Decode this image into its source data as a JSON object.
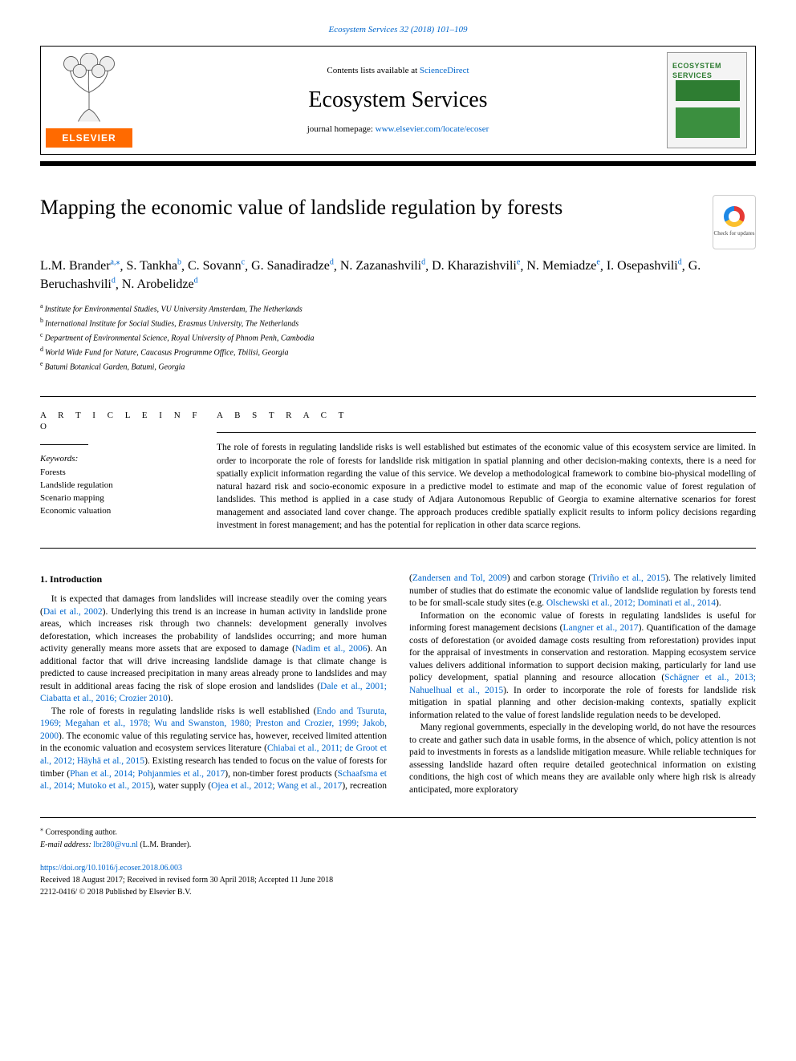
{
  "header": {
    "page_ref": "Ecosystem Services 32 (2018) 101–109",
    "contents_prefix": "Contents lists available at ",
    "contents_link": "ScienceDirect",
    "journal_name": "Ecosystem Services",
    "homepage_prefix": "journal homepage: ",
    "homepage_url": "www.elsevier.com/locate/ecoser",
    "elsevier": "ELSEVIER",
    "cover_ecosystem": "ECOSYSTEM",
    "cover_services": "SERVICES"
  },
  "title": "Mapping the economic value of landslide regulation by forests",
  "check_updates": "Check for updates",
  "authors": [
    {
      "name": "L.M. Brander",
      "sup": "a,",
      "star": "⁎"
    },
    {
      "name": "S. Tankha",
      "sup": "b"
    },
    {
      "name": "C. Sovann",
      "sup": "c"
    },
    {
      "name": "G. Sanadiradze",
      "sup": "d"
    },
    {
      "name": "N. Zazanashvili",
      "sup": "d"
    },
    {
      "name": "D. Kharazishvili",
      "sup": "e"
    },
    {
      "name": "N. Memiadze",
      "sup": "e"
    },
    {
      "name": "I. Osepashvili",
      "sup": "d"
    },
    {
      "name": "G. Beruchashvili",
      "sup": "d"
    },
    {
      "name": "N. Arobelidze",
      "sup": "d"
    }
  ],
  "affiliations": [
    {
      "sup": "a",
      "text": "Institute for Environmental Studies, VU University Amsterdam, The Netherlands"
    },
    {
      "sup": "b",
      "text": "International Institute for Social Studies, Erasmus University, The Netherlands"
    },
    {
      "sup": "c",
      "text": "Department of Environmental Science, Royal University of Phnom Penh, Cambodia"
    },
    {
      "sup": "d",
      "text": "World Wide Fund for Nature, Caucasus Programme Office, Tbilisi, Georgia"
    },
    {
      "sup": "e",
      "text": "Batumi Botanical Garden, Batumi, Georgia"
    }
  ],
  "labels": {
    "article_info": "A R T I C L E  I N F O",
    "abstract": "A B S T R A C T",
    "keywords_head": "Keywords:"
  },
  "keywords": [
    "Forests",
    "Landslide regulation",
    "Scenario mapping",
    "Economic valuation"
  ],
  "abstract": "The role of forests in regulating landslide risks is well established but estimates of the economic value of this ecosystem service are limited. In order to incorporate the role of forests for landslide risk mitigation in spatial planning and other decision-making contexts, there is a need for spatially explicit information regarding the value of this service. We develop a methodological framework to combine bio-physical modelling of natural hazard risk and socio-economic exposure in a predictive model to estimate and map of the economic value of forest regulation of landslides. This method is applied in a case study of Adjara Autonomous Republic of Georgia to examine alternative scenarios for forest management and associated land cover change. The approach produces credible spatially explicit results to inform policy decisions regarding investment in forest management; and has the potential for replication in other data scarce regions.",
  "body": {
    "heading": "1. Introduction",
    "p1a": "It is expected that damages from landslides will increase steadily over the coming years (",
    "p1_ref1": "Dai et al., 2002",
    "p1b": "). Underlying this trend is an increase in human activity in landslide prone areas, which increases risk through two channels: development generally involves deforestation, which increases the probability of landslides occurring; and more human activity generally means more assets that are exposed to damage (",
    "p1_ref2": "Nadim et al., 2006",
    "p1c": "). An additional factor that will drive increasing landslide damage is that climate change is predicted to cause increased precipitation in many areas already prone to landslides and may result in additional areas facing the risk of slope erosion and landslides (",
    "p1_ref3": "Dale et al., 2001; Ciabatta et al., 2016; Crozier 2010",
    "p1d": ").",
    "p2a": "The role of forests in regulating landslide risks is well established (",
    "p2_ref1": "Endo and Tsuruta, 1969; Megahan et al., 1978; Wu and Swanston, 1980; Preston and Crozier, 1999; Jakob, 2000",
    "p2b": "). The economic value of this regulating service has, however, received limited attention in the economic valuation and ecosystem services literature (",
    "p2_ref2": "Chiabai et al., 2011; de Groot et al., 2012; Häyhä et al., 2015",
    "p2c": "). Existing research has tended to focus on the value of forests for timber (",
    "p2_ref3": "Phan et al., 2014; Pohjanmies et al., 2017",
    "p2d": "), non-timber forest products (",
    "p2_ref4": "Schaafsma et al., 2014; Mutoko et al., 2015",
    "p2e": "), water supply (",
    "p2_ref5": "Ojea et al., 2012; Wang et al., 2017",
    "p2f": "), recreation (",
    "p2_ref6": "Zandersen and Tol, 2009",
    "p2g": ") and carbon storage ",
    "p3a": "(",
    "p3_ref1": "Triviño et al., 2015",
    "p3b": "). The relatively limited number of studies that do estimate the economic value of landslide regulation by forests tend to be for small-scale study sites (e.g. ",
    "p3_ref2": "Olschewski et al., 2012; Dominati et al., 2014",
    "p3c": ").",
    "p4a": "Information on the economic value of forests in regulating landslides is useful for informing forest management decisions (",
    "p4_ref1": "Langner et al., 2017",
    "p4b": "). Quantification of the damage costs of deforestation (or avoided damage costs resulting from reforestation) provides input for the appraisal of investments in conservation and restoration. Mapping ecosystem service values delivers additional information to support decision making, particularly for land use policy development, spatial planning and resource allocation (",
    "p4_ref2": "Schägner et al., 2013; Nahuelhual et al., 2015",
    "p4c": "). In order to incorporate the role of forests for landslide risk mitigation in spatial planning and other decision-making contexts, spatially explicit information related to the value of forest landslide regulation needs to be developed.",
    "p5": "Many regional governments, especially in the developing world, do not have the resources to create and gather such data in usable forms, in the absence of which, policy attention is not paid to investments in forests as a landslide mitigation measure. While reliable techniques for assessing landslide hazard often require detailed geotechnical information on existing conditions, the high cost of which means they are available only where high risk is already anticipated, more exploratory"
  },
  "footnotes": {
    "corr_label": "⁎",
    "corr_text": " Corresponding author.",
    "email_label": "E-mail address: ",
    "email": "lbr280@vu.nl",
    "email_suffix": " (L.M. Brander)."
  },
  "bottom": {
    "doi": "https://doi.org/10.1016/j.ecoser.2018.06.003",
    "received": "Received 18 August 2017; Received in revised form 30 April 2018; Accepted 11 June 2018",
    "copyright": "2212-0416/ © 2018 Published by Elsevier B.V."
  },
  "colors": {
    "link": "#0066cc",
    "elsevier_orange": "#ff6a00",
    "cover_green": "#2e7d32"
  }
}
